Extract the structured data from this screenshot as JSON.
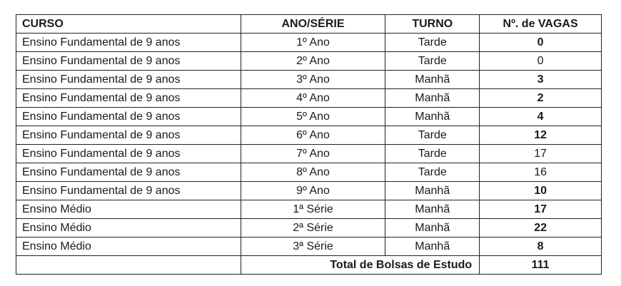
{
  "table": {
    "headers": [
      "CURSO",
      "ANO/SÉRIE",
      "TURNO",
      "Nº. de VAGAS"
    ],
    "rows": [
      {
        "curso": "Ensino Fundamental de 9 anos",
        "ano": "1º Ano",
        "turno": "Tarde",
        "vagas": "0",
        "bold": true
      },
      {
        "curso": "Ensino Fundamental de 9 anos",
        "ano": "2º Ano",
        "turno": "Tarde",
        "vagas": "0",
        "bold": false
      },
      {
        "curso": "Ensino Fundamental de 9 anos",
        "ano": "3º Ano",
        "turno": "Manhã",
        "vagas": "3",
        "bold": true
      },
      {
        "curso": "Ensino Fundamental de 9 anos",
        "ano": "4º Ano",
        "turno": "Manhã",
        "vagas": "2",
        "bold": true
      },
      {
        "curso": "Ensino Fundamental de 9 anos",
        "ano": "5º Ano",
        "turno": "Manhã",
        "vagas": "4",
        "bold": true
      },
      {
        "curso": "Ensino Fundamental de 9 anos",
        "ano": "6º Ano",
        "turno": "Tarde",
        "vagas": "12",
        "bold": true
      },
      {
        "curso": "Ensino Fundamental de 9 anos",
        "ano": "7º Ano",
        "turno": "Tarde",
        "vagas": "17",
        "bold": false
      },
      {
        "curso": "Ensino Fundamental de 9 anos",
        "ano": "8º Ano",
        "turno": "Tarde",
        "vagas": "16",
        "bold": false
      },
      {
        "curso": "Ensino Fundamental de 9 anos",
        "ano": "9º Ano",
        "turno": "Manhã",
        "vagas": "10",
        "bold": true
      },
      {
        "curso": "Ensino Médio",
        "ano": "1ª Série",
        "turno": "Manhã",
        "vagas": "17",
        "bold": true
      },
      {
        "curso": "Ensino Médio",
        "ano": "2ª Série",
        "turno": "Manhã",
        "vagas": "22",
        "bold": true
      },
      {
        "curso": "Ensino Médio",
        "ano": "3ª Série",
        "turno": "Manhã",
        "vagas": "8",
        "bold": true
      }
    ],
    "total_label": "Total de Bolsas de Estudo",
    "total_value": "111"
  }
}
